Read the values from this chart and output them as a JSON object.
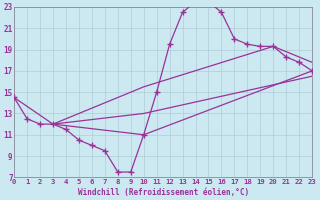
{
  "xlabel": "Windchill (Refroidissement éolien,°C)",
  "bg_color": "#cce8f0",
  "line_color": "#993399",
  "marker": "+",
  "xlim": [
    0,
    23
  ],
  "ylim": [
    7,
    23
  ],
  "xticks": [
    0,
    1,
    2,
    3,
    4,
    5,
    6,
    7,
    8,
    9,
    10,
    11,
    12,
    13,
    14,
    15,
    16,
    17,
    18,
    19,
    20,
    21,
    22,
    23
  ],
  "yticks": [
    7,
    9,
    11,
    13,
    15,
    17,
    19,
    21,
    23
  ],
  "grid_color": "#b0ccd8",
  "main_line": {
    "x": [
      0,
      1,
      2,
      3,
      4,
      5,
      6,
      7,
      8,
      9,
      10,
      11,
      12,
      13,
      14,
      15,
      16,
      17,
      18,
      19,
      20,
      21,
      22,
      23
    ],
    "y": [
      14.5,
      12.5,
      12,
      12,
      11.5,
      10.5,
      10,
      9.5,
      7.5,
      7.5,
      11,
      15,
      19.5,
      22.5,
      23.5,
      23.5,
      22.5,
      20,
      19.5,
      19.3,
      19.3,
      18.3,
      17.8,
      17.0
    ]
  },
  "extra_lines": [
    {
      "x": [
        0,
        3,
        10,
        23
      ],
      "y": [
        14.5,
        12.0,
        11.0,
        17.0
      ]
    },
    {
      "x": [
        3,
        10,
        23
      ],
      "y": [
        12.0,
        13.0,
        16.5
      ]
    },
    {
      "x": [
        3,
        10,
        20,
        23
      ],
      "y": [
        12.0,
        15.5,
        19.3,
        17.8
      ]
    }
  ]
}
